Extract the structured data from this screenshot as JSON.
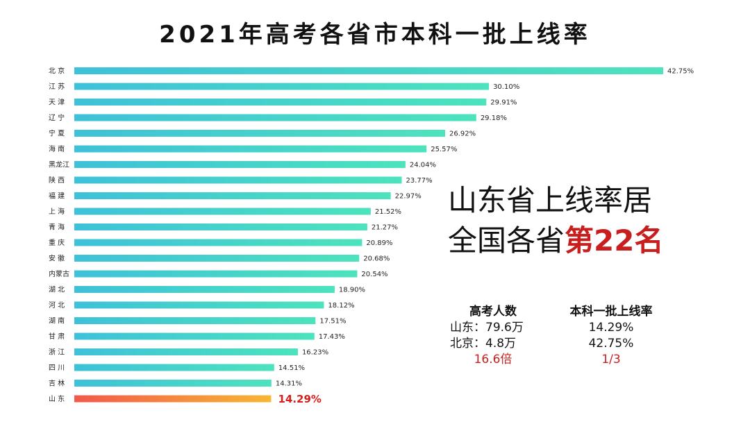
{
  "chart_data": {
    "type": "bar",
    "orientation": "horizontal",
    "title": "2021年高考各省市本科一批上线率",
    "categories": [
      "北  京",
      "江  苏",
      "天  津",
      "辽  宁",
      "宁  夏",
      "海  南",
      "黑龙江",
      "陕  西",
      "福  建",
      "上  海",
      "青  海",
      "重  庆",
      "安  徽",
      "内蒙古",
      "湖  北",
      "河  北",
      "湖  南",
      "甘  肃",
      "浙  江",
      "四  川",
      "吉  林",
      "山  东"
    ],
    "values": [
      42.75,
      30.1,
      29.91,
      29.18,
      26.92,
      25.57,
      24.04,
      23.77,
      22.97,
      21.52,
      21.27,
      20.89,
      20.68,
      20.54,
      18.9,
      18.12,
      17.51,
      17.43,
      16.23,
      14.51,
      14.31,
      14.29
    ],
    "value_labels": [
      "42.75%",
      "30.10%",
      "29.91%",
      "29.18%",
      "26.92%",
      "25.57%",
      "24.04%",
      "23.77%",
      "22.97%",
      "21.52%",
      "21.27%",
      "20.89%",
      "20.68%",
      "20.54%",
      "18.90%",
      "18.12%",
      "17.51%",
      "17.43%",
      "16.23%",
      "14.51%",
      "14.31%",
      "14.29%"
    ],
    "highlight_category": "山  东",
    "xlim": [
      0,
      42.75
    ],
    "grid": false,
    "legend": "none",
    "colors": {
      "bar_start": "#3ec1d9",
      "bar_end": "#4de3bd",
      "highlight_start": "#f2584a",
      "highlight_end": "#f7b733",
      "highlight_text": "#d62020"
    }
  },
  "callout": {
    "line1": "山东省上线率居",
    "line2_prefix": "全国各省",
    "line2_highlight": "第22名"
  },
  "stats": {
    "header_col1": "高考人数",
    "header_col2": "本科一批上线率",
    "row1_col1": "山东：79.6万",
    "row1_col2": "14.29%",
    "row2_col1": "北京：4.8万",
    "row2_col2": "42.75%",
    "ratio_col1": "16.6倍",
    "ratio_col2": "1/3"
  }
}
